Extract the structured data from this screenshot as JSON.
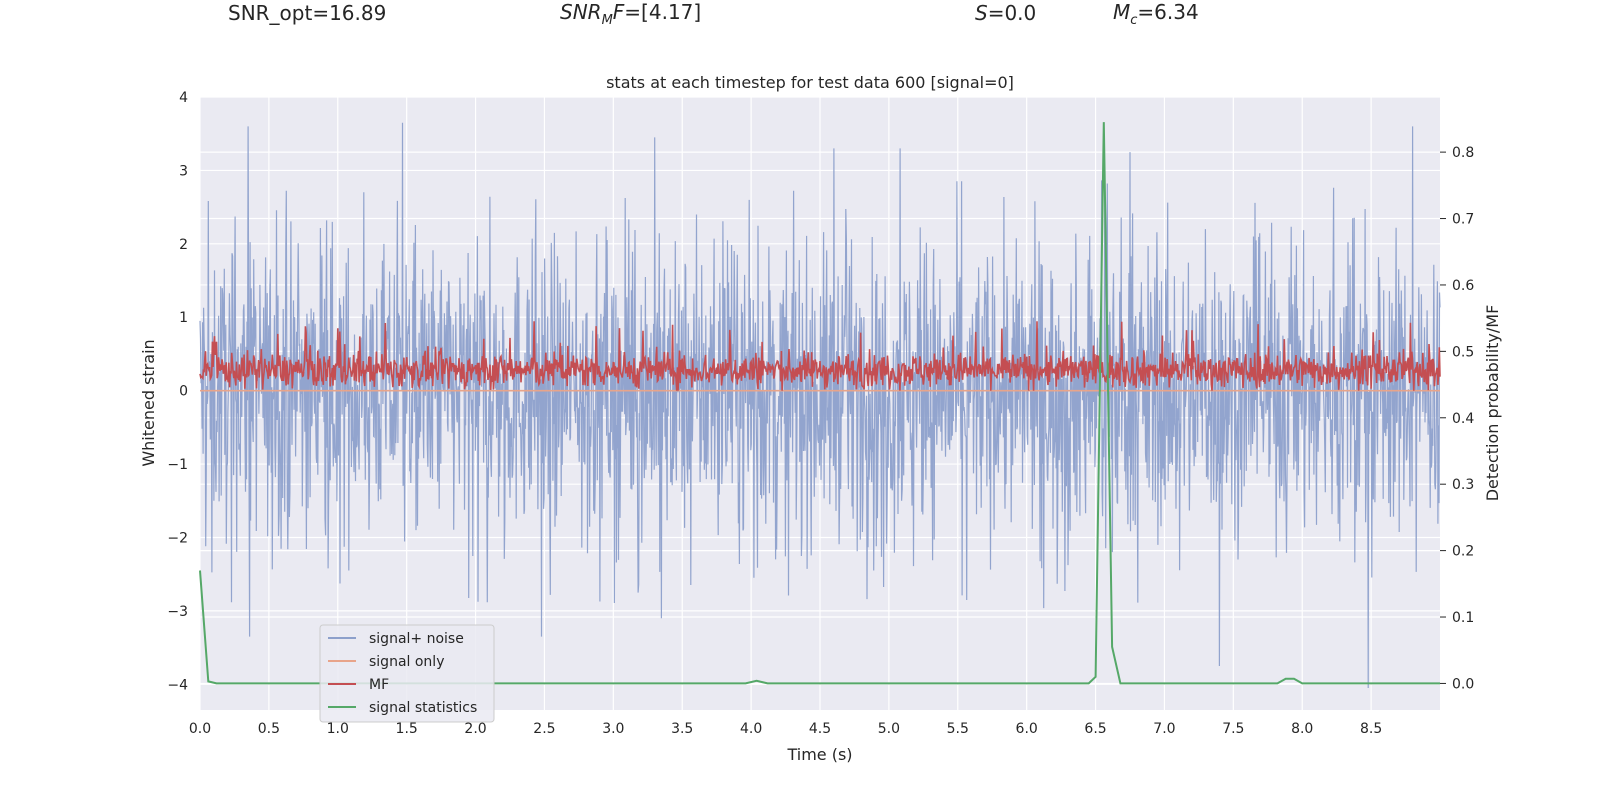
{
  "header": {
    "snr_opt": "SNR_opt=16.89",
    "snr_mf_base": "SNR",
    "snr_mf_sub": "M",
    "snr_mf_tail": "F",
    "snr_mf_value": "=[4.17]",
    "s_sym": "S",
    "s_value": "=0.0",
    "mc_sym": "M",
    "mc_sub": "c",
    "mc_value": "=6.34"
  },
  "chart_data": {
    "type": "line",
    "title": "stats at each timestep for test data 600 [signal=0]",
    "xlabel": "Time (s)",
    "ylabel_left": "Whitened strain",
    "ylabel_right": "Detection probability/MF",
    "xlim": [
      0.0,
      9.0
    ],
    "ylim_left": [
      -4.35,
      4.0
    ],
    "ylim_right": [
      -0.04,
      0.883
    ],
    "x_ticks": [
      "0.0",
      "0.5",
      "1.0",
      "1.5",
      "2.0",
      "2.5",
      "3.0",
      "3.5",
      "4.0",
      "4.5",
      "5.0",
      "5.5",
      "6.0",
      "6.5",
      "7.0",
      "7.5",
      "8.0",
      "8.5"
    ],
    "y_left_ticks": [
      "4",
      "3",
      "2",
      "1",
      "0",
      "−1",
      "−2",
      "−3",
      "−4"
    ],
    "y_left_tick_values": [
      4,
      3,
      2,
      1,
      0,
      -1,
      -2,
      -3,
      -4
    ],
    "y_right_ticks": [
      "0.8",
      "0.7",
      "0.6",
      "0.5",
      "0.4",
      "0.3",
      "0.2",
      "0.1",
      "0.0"
    ],
    "y_right_tick_values": [
      0.8,
      0.7,
      0.6,
      0.5,
      0.4,
      0.3,
      0.2,
      0.1,
      0.0
    ],
    "grid": true,
    "legend_position": "lower-left",
    "series": [
      {
        "name": "signal+ noise",
        "axis": "left",
        "color": "#8da0cb",
        "style": "dense noise, approx. range -3.35 to 3.65",
        "peaks": [
          {
            "x": 0.35,
            "y": 3.6
          },
          {
            "x": 1.47,
            "y": 3.65
          },
          {
            "x": 3.3,
            "y": 3.45
          },
          {
            "x": 4.6,
            "y": 3.3
          },
          {
            "x": 5.08,
            "y": 3.3
          },
          {
            "x": 6.75,
            "y": 3.25
          },
          {
            "x": 8.8,
            "y": 3.6
          },
          {
            "x": 0.36,
            "y": -3.35
          },
          {
            "x": 2.48,
            "y": -3.35
          },
          {
            "x": 3.35,
            "y": -3.1
          },
          {
            "x": 7.4,
            "y": -3.75
          },
          {
            "x": 8.48,
            "y": -4.05
          }
        ]
      },
      {
        "name": "signal only",
        "axis": "left",
        "color": "#e8a48a",
        "x": [
          0.0,
          9.0
        ],
        "y": [
          0.0,
          0.0
        ]
      },
      {
        "name": "MF",
        "axis": "left",
        "color": "#c44e52",
        "style": "dense noise, approx. range 0.0 to 1.0"
      },
      {
        "name": "signal statistics",
        "axis": "right",
        "color": "#55a868",
        "x": [
          0.0,
          0.06,
          0.12,
          1.0,
          2.0,
          3.0,
          3.96,
          4.04,
          4.12,
          5.0,
          6.0,
          6.45,
          6.5,
          6.56,
          6.62,
          6.68,
          7.0,
          7.82,
          7.88,
          7.94,
          8.0,
          8.5,
          9.0
        ],
        "y": [
          0.17,
          0.003,
          0.0,
          0.0,
          0.0,
          0.0,
          0.0,
          0.004,
          0.0,
          0.0,
          0.0,
          0.0,
          0.01,
          0.845,
          0.055,
          0.0,
          0.0,
          0.0,
          0.007,
          0.007,
          0.0,
          0.0,
          0.0
        ]
      }
    ]
  }
}
